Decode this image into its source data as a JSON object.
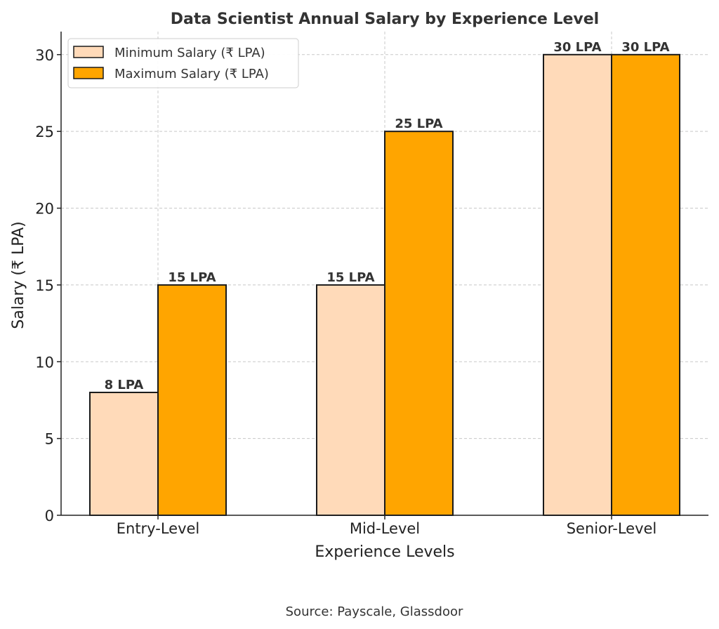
{
  "chart_data": {
    "type": "bar",
    "title": "Data Scientist Annual Salary by Experience Level",
    "xlabel": "Experience Levels",
    "ylabel": "Salary (₹ LPA)",
    "categories": [
      "Entry-Level",
      "Mid-Level",
      "Senior-Level"
    ],
    "series": [
      {
        "name": "Minimum Salary (₹ LPA)",
        "values": [
          8,
          15,
          30
        ],
        "labels": [
          "8 LPA",
          "15 LPA",
          "30 LPA"
        ],
        "color": "#FFDAB9"
      },
      {
        "name": "Maximum Salary (₹ LPA)",
        "values": [
          15,
          25,
          30
        ],
        "labels": [
          "15 LPA",
          "25 LPA",
          "30 LPA"
        ],
        "color": "#FFA500"
      }
    ],
    "ylim": [
      0,
      31.5
    ],
    "yticks": [
      0,
      5,
      10,
      15,
      20,
      25,
      30
    ],
    "grid": true,
    "legend_position": "top-left",
    "source": "Source: Payscale, Glassdoor"
  }
}
